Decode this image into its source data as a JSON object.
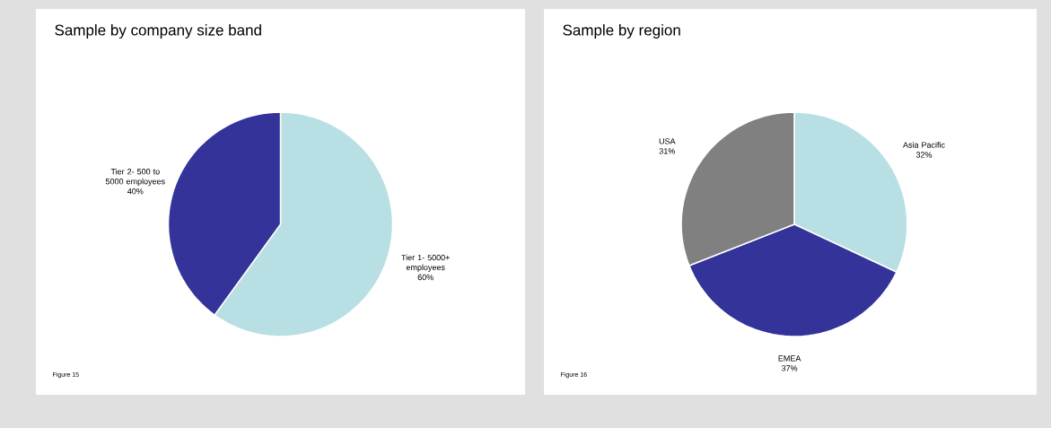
{
  "chart_data": [
    {
      "type": "pie",
      "title": "Sample by company size band",
      "categories": [
        "Tier 1- 5000+ employees",
        "Tier 2- 500 to 5000 employees"
      ],
      "values": [
        60,
        40
      ],
      "value_labels": [
        "60%",
        "40%"
      ],
      "colors": [
        "#b8dfe3",
        "#333399"
      ],
      "annotations": [
        "Figure 15"
      ]
    },
    {
      "type": "pie",
      "title": "Sample by region",
      "categories": [
        "Asia Pacific",
        "EMEA",
        "USA"
      ],
      "values": [
        32,
        37,
        31
      ],
      "value_labels": [
        "32%",
        "37%",
        "31%"
      ],
      "colors": [
        "#b8dfe3",
        "#333399",
        "#808080"
      ],
      "annotations": [
        "Figure 16"
      ]
    }
  ]
}
